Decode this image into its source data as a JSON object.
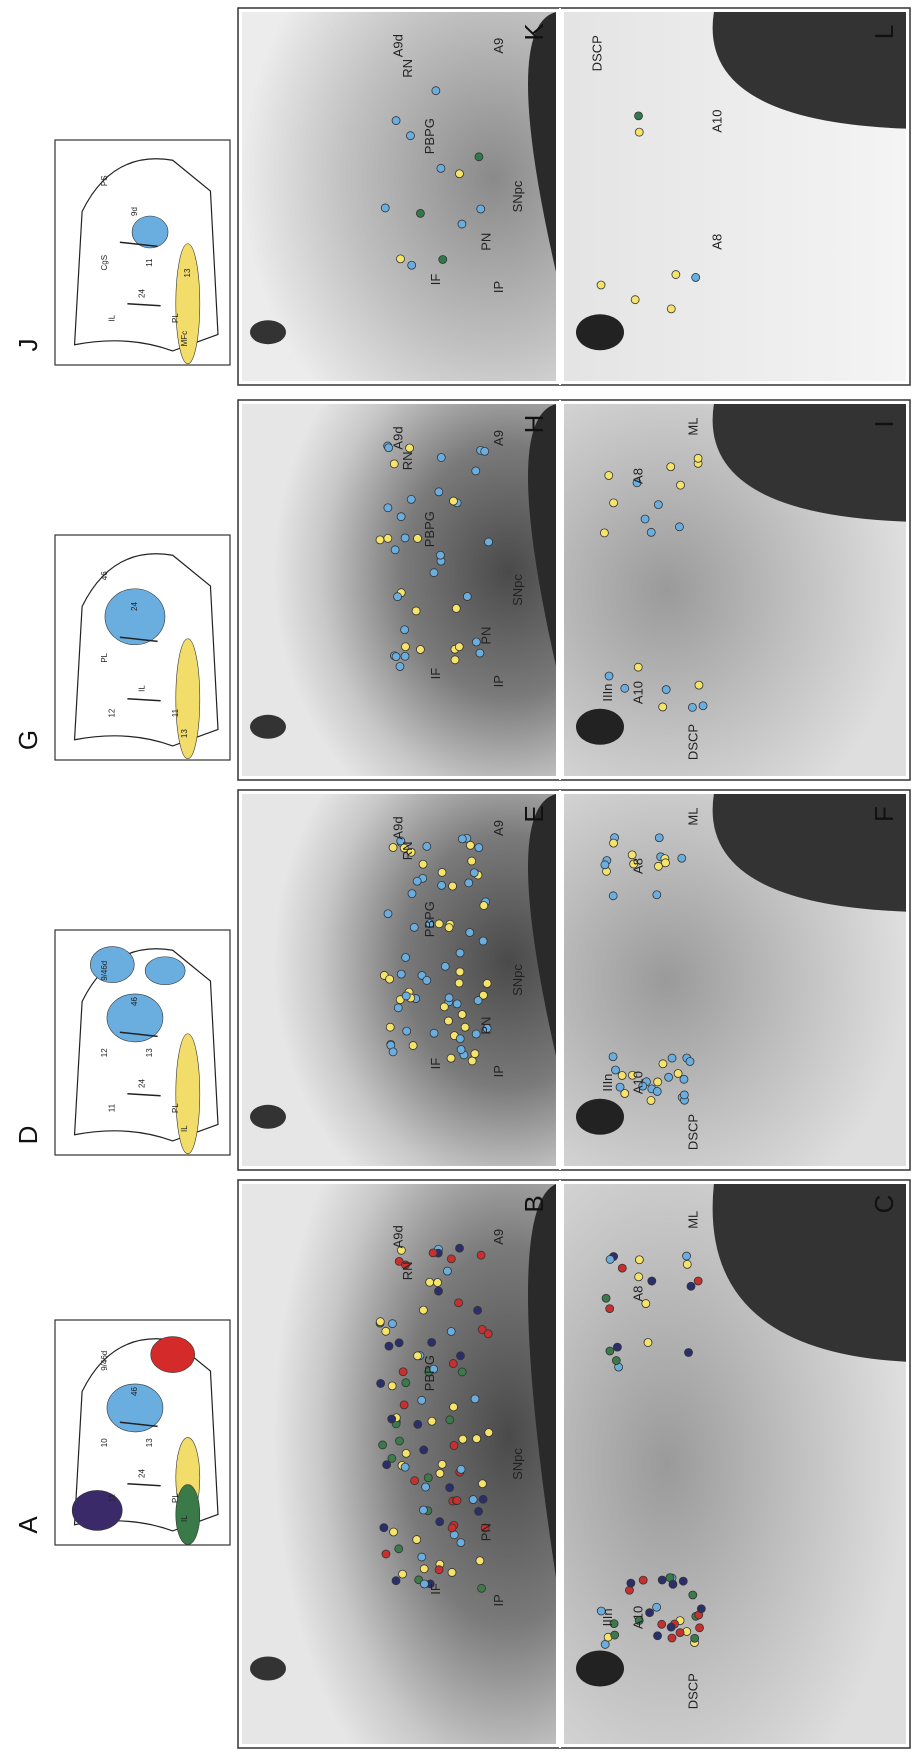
{
  "groups": [
    {
      "inset": {
        "letter": "J",
        "labels": [
          "PS",
          "9d",
          "CgS",
          "24",
          "PL",
          "MFc",
          "IL",
          "11",
          "13"
        ]
      },
      "top": {
        "letter": "K",
        "labels": [
          "RN",
          "PBPG",
          "IF",
          "IP",
          "PN",
          "SNpc",
          "A9d",
          "A9"
        ]
      },
      "bottom": {
        "letter": "L",
        "labels": [
          "A10",
          "DSCP",
          "A8"
        ]
      }
    },
    {
      "inset": {
        "letter": "G",
        "labels": [
          "46",
          "24",
          "PL",
          "IL",
          "11",
          "13",
          "12"
        ]
      },
      "top": {
        "letter": "H",
        "labels": [
          "RN",
          "PBPG",
          "IF",
          "IP",
          "PN",
          "SNpc",
          "A9d",
          "A9"
        ]
      },
      "bottom": {
        "letter": "I",
        "labels": [
          "IIIn",
          "A10",
          "DSCP",
          "A8",
          "ML"
        ]
      }
    },
    {
      "inset": {
        "letter": "D",
        "labels": [
          "9/46d",
          "46",
          "12",
          "24",
          "PL",
          "IL",
          "11",
          "13"
        ]
      },
      "top": {
        "letter": "E",
        "labels": [
          "RN",
          "PBPG",
          "IF",
          "IP",
          "PN",
          "SNpc",
          "A9d",
          "A9"
        ]
      },
      "bottom": {
        "letter": "F",
        "labels": [
          "IIIn",
          "A10",
          "DSCP",
          "A8",
          "ML"
        ]
      }
    },
    {
      "inset": {
        "letter": "A",
        "labels": [
          "9/46d",
          "46",
          "10",
          "24",
          "PL",
          "IL",
          "11",
          "13"
        ]
      },
      "top": {
        "letter": "B",
        "labels": [
          "RN",
          "PBPG",
          "IF",
          "IP",
          "PN",
          "SNpc",
          "A9d",
          "A9"
        ]
      },
      "bottom": {
        "letter": "C",
        "labels": [
          "IIIn",
          "A10",
          "DSCP",
          "A8",
          "ML"
        ]
      }
    }
  ]
}
